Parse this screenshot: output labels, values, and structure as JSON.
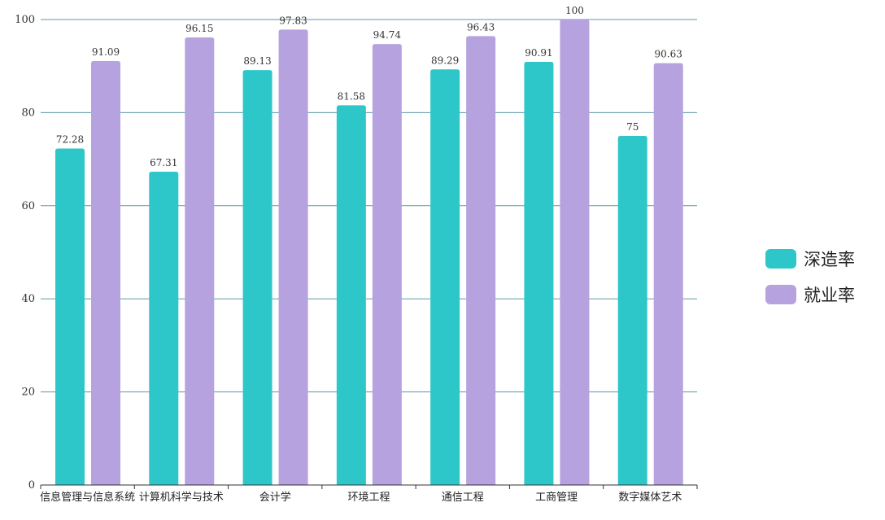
{
  "chart_data": {
    "type": "bar",
    "categories": [
      "信息管理与信息系统",
      "计算机科学与技术",
      "会计学",
      "环境工程",
      "通信工程",
      "工商管理",
      "数字媒体艺术"
    ],
    "series": [
      {
        "name": "深造率",
        "values": [
          72.28,
          67.31,
          89.13,
          81.58,
          89.29,
          90.91,
          75
        ],
        "labels": [
          "72.28",
          "67.31",
          "89.13",
          "81.58",
          "89.29",
          "90.91",
          "75"
        ],
        "color": "#2ec7c9"
      },
      {
        "name": "就业率",
        "values": [
          91.09,
          96.15,
          97.83,
          94.74,
          96.43,
          100,
          90.63
        ],
        "labels": [
          "91.09",
          "96.15",
          "97.83",
          "94.74",
          "96.43",
          "100",
          "90.63"
        ],
        "color": "#b6a2de"
      }
    ],
    "ylim": [
      0,
      100
    ],
    "yticks": [
      0,
      20,
      40,
      60,
      80,
      100
    ],
    "yticks_labels": [
      "0",
      "20",
      "40",
      "60",
      "80",
      "100"
    ],
    "grid": true,
    "gridline_color": "#5b9aa6",
    "legend_position": "right"
  }
}
